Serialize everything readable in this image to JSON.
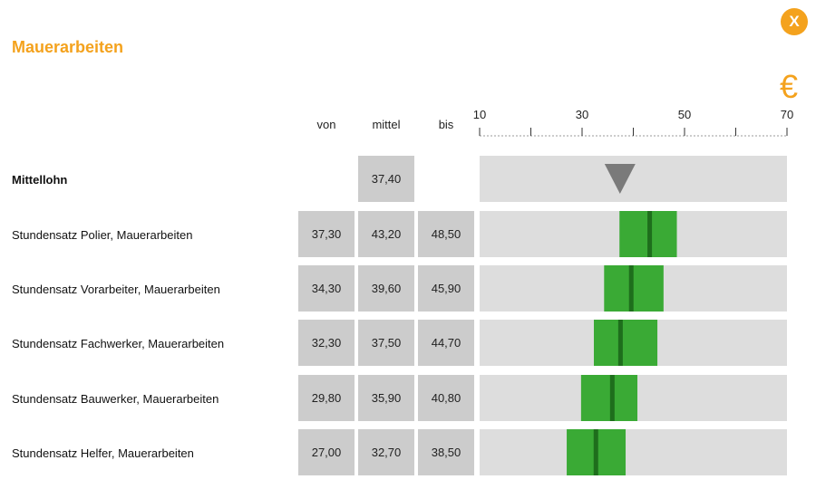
{
  "header": {
    "title": "Mauerarbeiten",
    "close_label": "X",
    "currency_symbol": "€"
  },
  "columns": {
    "von": "von",
    "mittel": "mittel",
    "bis": "bis"
  },
  "colors": {
    "accent": "#f4a21d",
    "bar_range": "#3aaa35",
    "bar_median": "#1e6e1c",
    "track": "#dddddd",
    "cell": "#cccccc",
    "marker": "#7a7a7a"
  },
  "chart_data": {
    "type": "range-bar",
    "x_ticks": [
      10,
      30,
      50,
      70
    ],
    "xlim": [
      10,
      70
    ],
    "mittellohn": {
      "label": "Mittellohn",
      "value": 37.4,
      "display": "37,40"
    },
    "rows": [
      {
        "label": "Stundensatz Polier, Mauerarbeiten",
        "von": 37.3,
        "mittel": 43.2,
        "bis": 48.5,
        "von_text": "37,30",
        "mittel_text": "43,20",
        "bis_text": "48,50"
      },
      {
        "label": "Stundensatz Vorarbeiter, Mauerarbeiten",
        "von": 34.3,
        "mittel": 39.6,
        "bis": 45.9,
        "von_text": "34,30",
        "mittel_text": "39,60",
        "bis_text": "45,90"
      },
      {
        "label": "Stundensatz Fachwerker, Mauerarbeiten",
        "von": 32.3,
        "mittel": 37.5,
        "bis": 44.7,
        "von_text": "32,30",
        "mittel_text": "37,50",
        "bis_text": "44,70"
      },
      {
        "label": "Stundensatz Bauwerker, Mauerarbeiten",
        "von": 29.8,
        "mittel": 35.9,
        "bis": 40.8,
        "von_text": "29,80",
        "mittel_text": "35,90",
        "bis_text": "40,80"
      },
      {
        "label": "Stundensatz Helfer, Mauerarbeiten",
        "von": 27.0,
        "mittel": 32.7,
        "bis": 38.5,
        "von_text": "27,00",
        "mittel_text": "32,70",
        "bis_text": "38,50"
      }
    ]
  }
}
